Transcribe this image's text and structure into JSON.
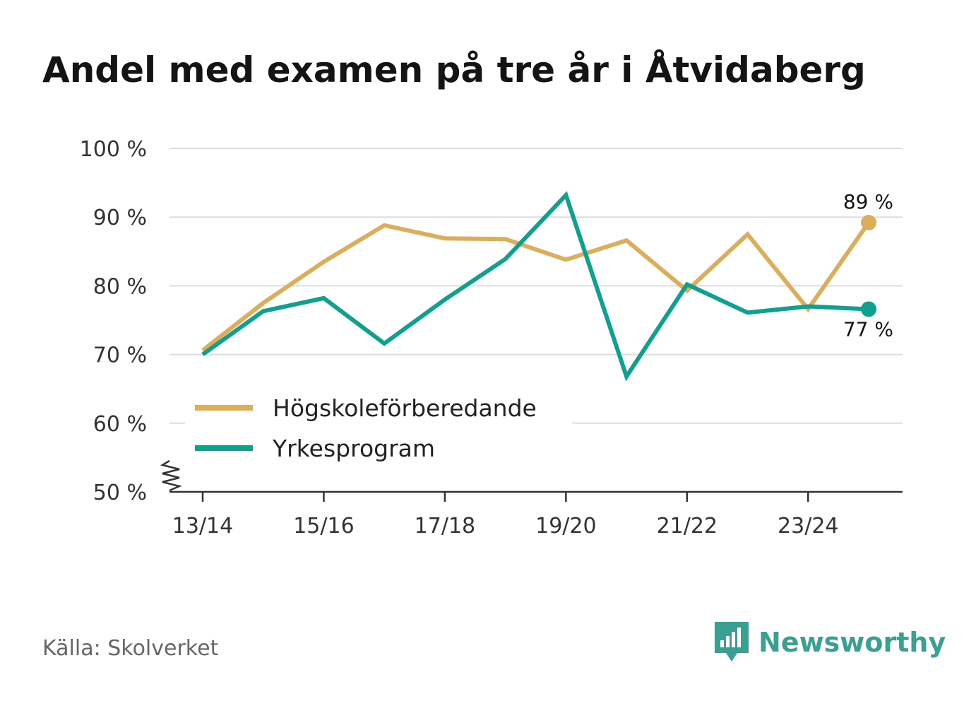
{
  "title": "Andel med examen på tre år i Åtvidaberg",
  "source": "Källa: Skolverket",
  "brand": "Newsworthy",
  "colors": {
    "series1": "#dcad5a",
    "series2": "#0fa090",
    "grid": "#dddddd",
    "axis": "#333333"
  },
  "chart_data": {
    "type": "line",
    "x": [
      "13/14",
      "14/15",
      "15/16",
      "16/17",
      "17/18",
      "18/19",
      "19/20",
      "20/21",
      "21/22",
      "22/23",
      "23/24",
      "24/25"
    ],
    "tick_labels": [
      "13/14",
      "15/16",
      "17/18",
      "19/20",
      "21/22",
      "23/24"
    ],
    "y_tick_labels": [
      "50 %",
      "60 %",
      "70 %",
      "80 %",
      "90 %",
      "100 %"
    ],
    "ylim": [
      50,
      100
    ],
    "axis_break": true,
    "series": [
      {
        "name": "Högskoleförberedande",
        "color": "#dcad5a",
        "values": [
          70.6,
          77.5,
          83.5,
          88.8,
          86.9,
          86.8,
          83.8,
          86.6,
          79.3,
          87.5,
          76.6,
          89.2
        ],
        "end_label": "89 %"
      },
      {
        "name": "Yrkesprogram",
        "color": "#0fa090",
        "values": [
          70.0,
          76.3,
          78.2,
          71.6,
          78.0,
          83.9,
          93.2,
          66.8,
          80.2,
          76.1,
          77.0,
          76.6
        ],
        "end_label": "77 %"
      }
    ],
    "legend_position": "bottom-left"
  }
}
